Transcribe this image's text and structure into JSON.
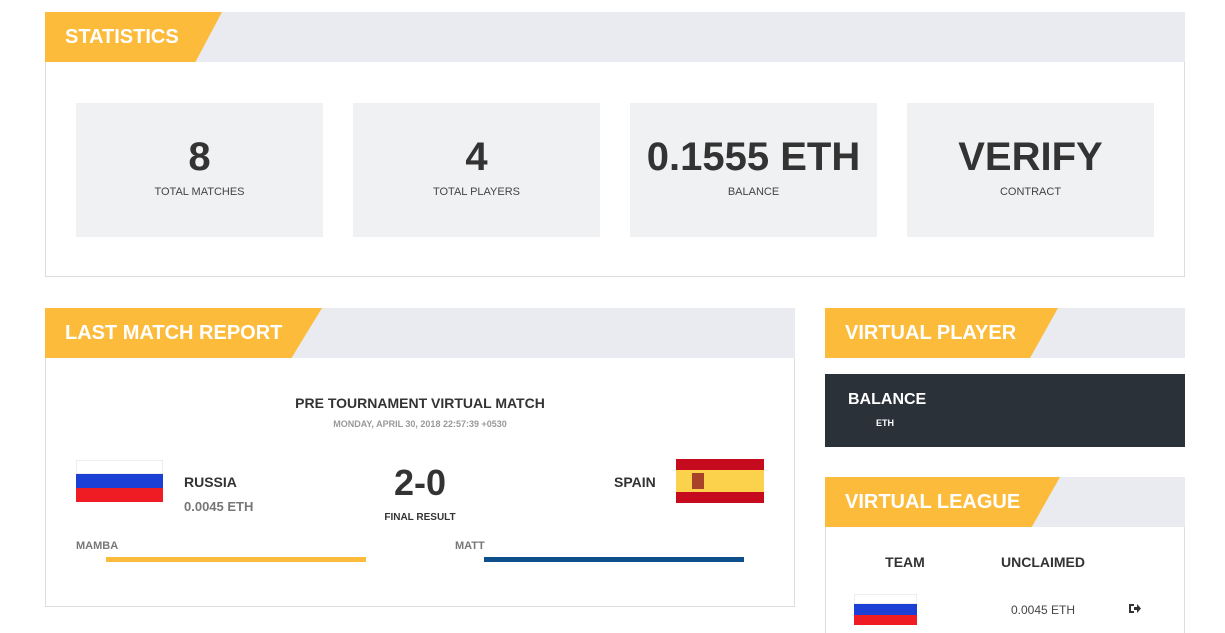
{
  "statistics": {
    "title": "STATISTICS",
    "items": [
      {
        "value": "8",
        "label": "TOTAL MATCHES"
      },
      {
        "value": "4",
        "label": "TOTAL PLAYERS"
      },
      {
        "value": "0.1555 ETH",
        "label": "BALANCE"
      },
      {
        "value": "VERIFY",
        "label": "CONTRACT"
      }
    ]
  },
  "last_match_report": {
    "title": "LAST MATCH REPORT",
    "match_title": "PRE TOURNAMENT VIRTUAL MATCH",
    "date": "MONDAY, APRIL 30, 2018 22:57:39 +0530",
    "home": {
      "team": "RUSSIA",
      "amount": "0.0045 ETH",
      "player": "MAMBA"
    },
    "score": "2-0",
    "score_label": "FINAL RESULT",
    "away": {
      "team": "SPAIN",
      "player": "MATT"
    }
  },
  "virtual_player": {
    "title": "VIRTUAL PLAYER",
    "balance_label": "BALANCE",
    "balance_unit": "ETH"
  },
  "virtual_league": {
    "title": "VIRTUAL LEAGUE",
    "columns": [
      "TEAM",
      "UNCLAIMED"
    ],
    "rows": [
      {
        "unclaimed": "0.0045 ETH"
      }
    ]
  }
}
